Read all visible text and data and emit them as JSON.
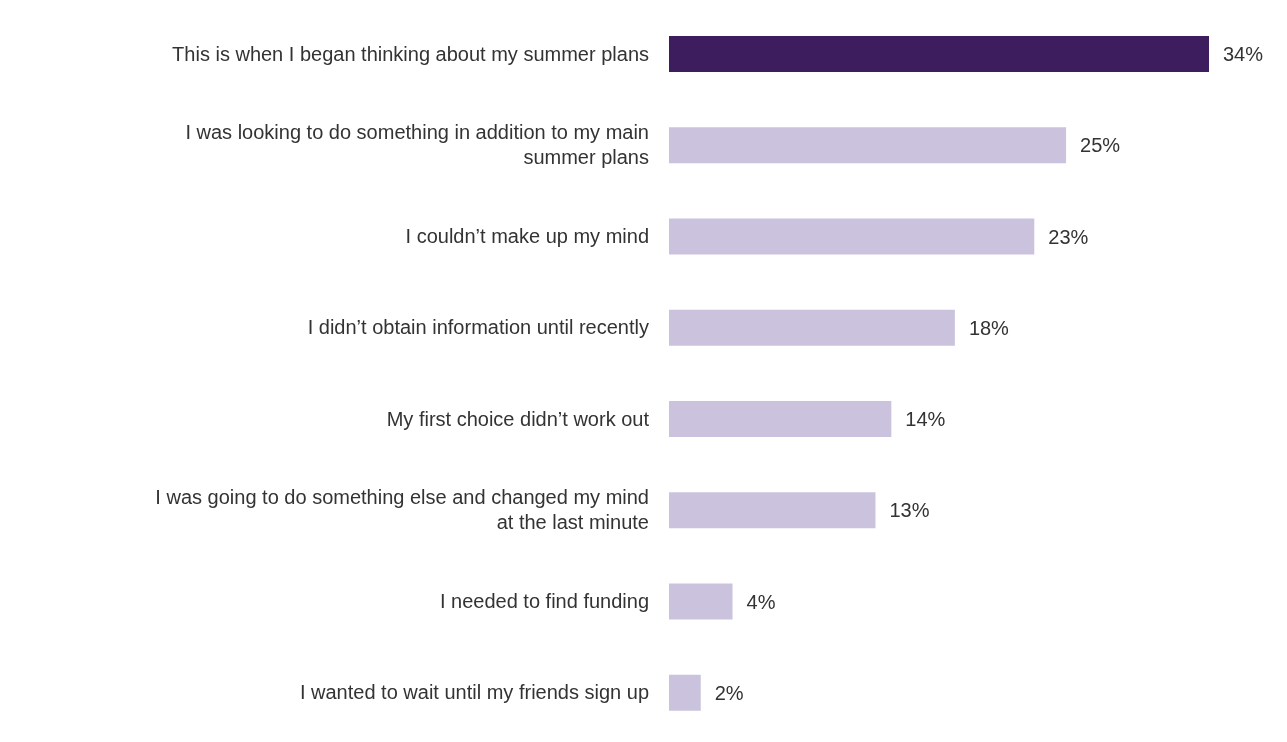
{
  "chart_data": {
    "type": "bar",
    "orientation": "horizontal",
    "categories": [
      "This is when I began thinking about my summer plans",
      "I was looking to do something in addition to my main summer plans",
      "I couldn’t make up my mind",
      "I didn’t obtain information until recently",
      "My first choice didn’t work out",
      "I was going to do something else and changed my mind at the last minute",
      "I needed to find funding",
      "I wanted to wait until my friends sign up"
    ],
    "values": [
      34,
      25,
      23,
      18,
      14,
      13,
      4,
      2
    ],
    "colors": [
      "#3d1d5e",
      "#cbc3dd",
      "#cbc3dd",
      "#cbc3dd",
      "#cbc3dd",
      "#cbc3dd",
      "#cbc3dd",
      "#cbc3dd"
    ],
    "value_labels": [
      "34%",
      "25%",
      "23%",
      "18%",
      "14%",
      "13%",
      "4%",
      "2%"
    ],
    "grid": false,
    "legend": false
  }
}
